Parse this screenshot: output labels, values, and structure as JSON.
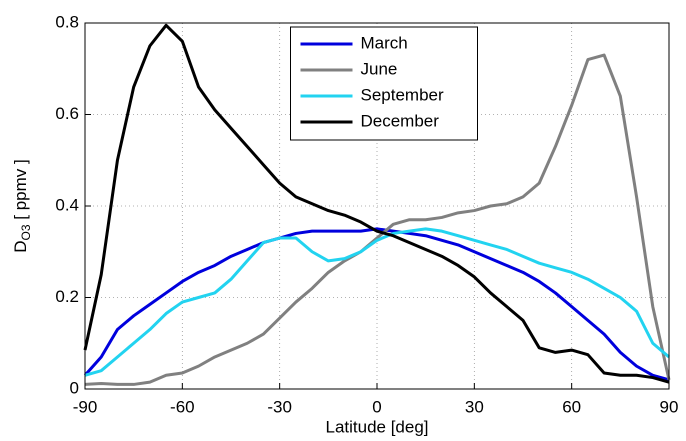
{
  "chart_data": {
    "type": "line",
    "xlabel": "Latitude [deg]",
    "ylabel_parts": [
      "D",
      "O3",
      " [ ppmv ]"
    ],
    "x": [
      -90,
      -85,
      -80,
      -75,
      -70,
      -65,
      -60,
      -55,
      -50,
      -45,
      -40,
      -35,
      -30,
      -25,
      -20,
      -15,
      -10,
      -5,
      0,
      5,
      10,
      15,
      20,
      25,
      30,
      35,
      40,
      45,
      50,
      55,
      60,
      65,
      70,
      75,
      80,
      85,
      90
    ],
    "series": [
      {
        "name": "March",
        "color": "#0000dd",
        "values": [
          0.03,
          0.07,
          0.13,
          0.16,
          0.185,
          0.21,
          0.235,
          0.255,
          0.27,
          0.29,
          0.305,
          0.32,
          0.33,
          0.34,
          0.345,
          0.345,
          0.345,
          0.345,
          0.35,
          0.345,
          0.34,
          0.335,
          0.325,
          0.315,
          0.3,
          0.285,
          0.27,
          0.255,
          0.235,
          0.21,
          0.18,
          0.15,
          0.12,
          0.08,
          0.05,
          0.03,
          0.02
        ]
      },
      {
        "name": "June",
        "color": "#808080",
        "values": [
          0.01,
          0.012,
          0.01,
          0.01,
          0.015,
          0.03,
          0.035,
          0.05,
          0.07,
          0.085,
          0.1,
          0.12,
          0.155,
          0.19,
          0.22,
          0.255,
          0.28,
          0.3,
          0.33,
          0.36,
          0.37,
          0.37,
          0.375,
          0.385,
          0.39,
          0.4,
          0.405,
          0.42,
          0.45,
          0.53,
          0.62,
          0.72,
          0.73,
          0.64,
          0.42,
          0.18,
          0.02
        ]
      },
      {
        "name": "September",
        "color": "#22d3f0",
        "values": [
          0.03,
          0.04,
          0.07,
          0.1,
          0.13,
          0.165,
          0.19,
          0.2,
          0.21,
          0.24,
          0.28,
          0.32,
          0.33,
          0.33,
          0.3,
          0.28,
          0.285,
          0.3,
          0.325,
          0.34,
          0.345,
          0.35,
          0.345,
          0.335,
          0.325,
          0.315,
          0.305,
          0.29,
          0.275,
          0.265,
          0.255,
          0.24,
          0.22,
          0.2,
          0.17,
          0.1,
          0.07
        ]
      },
      {
        "name": "December",
        "color": "#000000",
        "values": [
          0.085,
          0.25,
          0.5,
          0.66,
          0.75,
          0.795,
          0.76,
          0.66,
          0.61,
          0.57,
          0.53,
          0.49,
          0.45,
          0.42,
          0.405,
          0.39,
          0.38,
          0.365,
          0.345,
          0.335,
          0.32,
          0.305,
          0.29,
          0.27,
          0.245,
          0.21,
          0.18,
          0.15,
          0.09,
          0.08,
          0.085,
          0.075,
          0.035,
          0.03,
          0.03,
          0.025,
          0.015
        ]
      }
    ],
    "xlim": [
      -90,
      90
    ],
    "xticks": [
      -90,
      -60,
      -30,
      0,
      30,
      60,
      90
    ],
    "ylim": [
      0,
      0.8
    ],
    "yticks": [
      0,
      0.2,
      0.4,
      0.6,
      0.8
    ],
    "grid": true,
    "legend": "upper center"
  }
}
